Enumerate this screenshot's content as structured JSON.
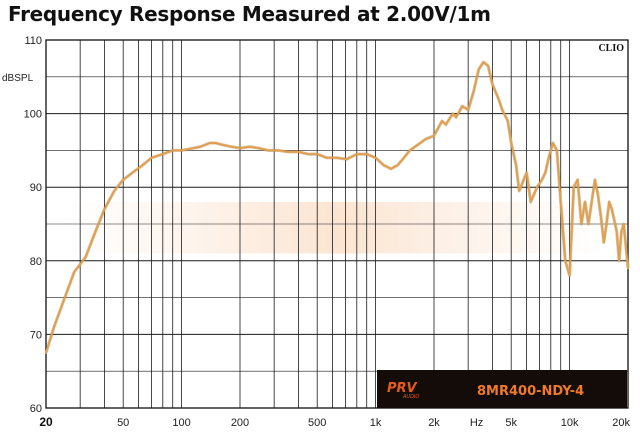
{
  "chart_data": {
    "type": "line",
    "title": "Frequency Response Measured at 2.00V/1m",
    "ylabel": "dBSPL",
    "xlabel": "Hz",
    "x_scale": "log",
    "xlim": [
      20,
      20000
    ],
    "ylim": [
      60,
      110
    ],
    "x_tick_labels": [
      {
        "value": 20,
        "label": "20"
      },
      {
        "value": 50,
        "label": "50"
      },
      {
        "value": 100,
        "label": "100"
      },
      {
        "value": 200,
        "label": "200"
      },
      {
        "value": 500,
        "label": "500"
      },
      {
        "value": 1000,
        "label": "1k"
      },
      {
        "value": 2000,
        "label": "2k"
      },
      {
        "value": 5000,
        "label": "5k"
      },
      {
        "value": 10000,
        "label": "10k"
      },
      {
        "value": 20000,
        "label": "20k"
      }
    ],
    "y_ticks": [
      60,
      70,
      80,
      90,
      100,
      110
    ],
    "grid": true,
    "watermark": "CLIO",
    "logo_text": "PRV AUDIO",
    "model": "8MR400-NDY-4",
    "colors": {
      "curve": "#e0a050",
      "model_box": "#140c08",
      "model_text": "#f07a2a"
    },
    "series": [
      {
        "x": [
          20,
          22,
          25,
          28,
          32,
          36,
          40,
          45,
          50,
          56,
          63,
          70,
          80,
          90,
          100,
          110,
          125,
          140,
          150,
          160,
          180,
          200,
          225,
          250,
          280,
          315,
          355,
          400,
          450,
          500,
          560,
          630,
          710,
          800,
          900,
          1000,
          1100,
          1200,
          1300,
          1400,
          1500,
          1700,
          1800,
          2000,
          2200,
          2300,
          2500,
          2600,
          2800,
          3000,
          3200,
          3400,
          3600,
          3800,
          4000,
          4300,
          4500,
          4800,
          5000,
          5300,
          5500,
          5800,
          6000,
          6300,
          6800,
          7200,
          7500,
          7800,
          8200,
          8600,
          9000,
          9500,
          10000,
          10500,
          11000,
          11500,
          12000,
          12500,
          13000,
          13500,
          14000,
          14500,
          15000,
          15500,
          16000,
          16500,
          17000,
          17500,
          18000,
          18500,
          19000,
          19500,
          20000
        ],
        "values": [
          67.5,
          71,
          75,
          78.5,
          80.5,
          84,
          87,
          89.5,
          91,
          92,
          93,
          94,
          94.5,
          95,
          95,
          95.2,
          95.5,
          96,
          96,
          95.8,
          95.5,
          95.3,
          95.5,
          95.3,
          95,
          95,
          94.8,
          94.8,
          94.5,
          94.5,
          94,
          94,
          93.8,
          94.5,
          94.5,
          94,
          93,
          92.5,
          93,
          94,
          95,
          96,
          96.5,
          97,
          99,
          98.5,
          100,
          99.5,
          101,
          100.5,
          103,
          106,
          107,
          106.5,
          104,
          102,
          100.5,
          99,
          96,
          93,
          89.5,
          91,
          92,
          88,
          90,
          91,
          92,
          94,
          96,
          95,
          88,
          80,
          78,
          90,
          91,
          85,
          88,
          85,
          88,
          91,
          89,
          86,
          82.5,
          85,
          88,
          87,
          85.5,
          84,
          80,
          84,
          85,
          82,
          79
        ]
      }
    ]
  }
}
